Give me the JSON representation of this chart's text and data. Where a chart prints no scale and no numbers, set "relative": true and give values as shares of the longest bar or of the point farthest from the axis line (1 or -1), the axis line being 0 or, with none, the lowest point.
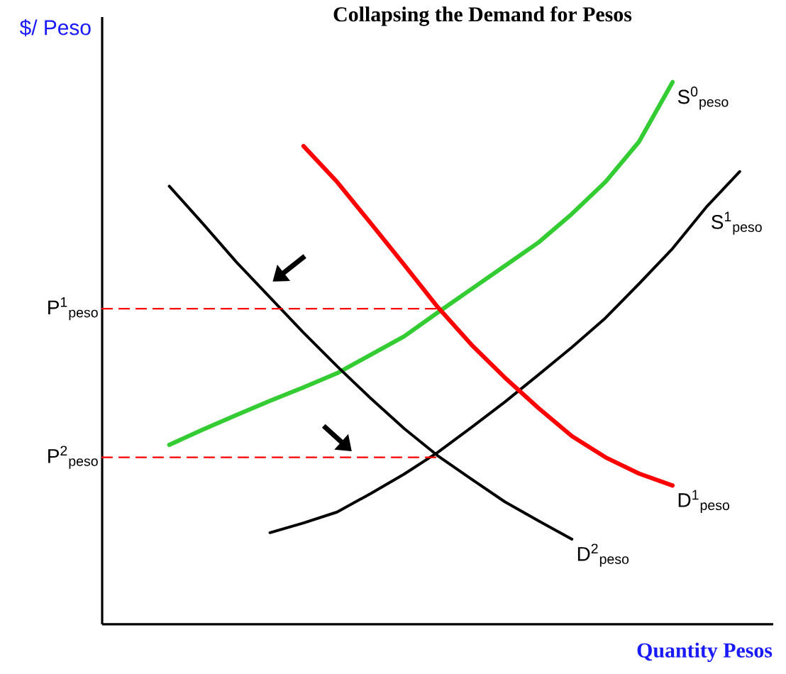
{
  "chart_data": {
    "type": "line",
    "relative": true,
    "title": "Collapsing the Demand for Pesos",
    "xlabel": "Quantity Pesos",
    "ylabel": "$/ Peso",
    "marker": "none",
    "categories": [
      null,
      null,
      null,
      null,
      null,
      null,
      null,
      null,
      null,
      null,
      null,
      null,
      null,
      null,
      null,
      null,
      null,
      null,
      null,
      null,
      null
    ],
    "series": [
      {
        "name": "S$^{0}$$_{peso}$",
        "color": "#33cc33",
        "values": [
          null,
          null,
          0.331,
          0.359,
          0.386,
          0.412,
          0.437,
          0.463,
          0.497,
          0.531,
          0.575,
          0.618,
          0.661,
          0.704,
          0.757,
          0.816,
          0.89,
          1.0,
          null,
          null,
          null
        ]
      },
      {
        "name": "S$^{1}$$_{peso}$",
        "color": "#000000",
        "values": [
          null,
          null,
          null,
          null,
          null,
          0.169,
          0.187,
          0.207,
          0.241,
          0.277,
          0.317,
          0.363,
          0.41,
          0.46,
          0.511,
          0.565,
          0.628,
          0.693,
          0.769,
          0.835,
          null
        ]
      },
      {
        "name": "D$^{1}$$_{peso}$",
        "color": "#ff0000",
        "values": [
          null,
          null,
          null,
          null,
          null,
          null,
          0.882,
          0.816,
          0.74,
          0.663,
          0.585,
          0.516,
          0.455,
          0.399,
          0.347,
          0.308,
          0.278,
          0.256,
          null,
          null,
          null
        ]
      },
      {
        "name": "D$^{2}$$_{peso}$",
        "color": "#000000",
        "values": [
          null,
          null,
          0.808,
          0.739,
          0.668,
          0.603,
          0.538,
          0.476,
          0.417,
          0.361,
          0.311,
          0.268,
          0.226,
          0.191,
          0.157,
          null,
          null,
          null,
          null,
          null,
          null
        ]
      },
      {
        "name": "P$^{1}$$_{peso}$",
        "color": "#ff0000",
        "line_style": "dashed",
        "values": [
          0.582,
          0.582,
          0.582,
          0.582,
          0.582,
          0.582,
          0.582,
          0.582,
          0.582,
          0.582,
          0.582,
          null,
          null,
          null,
          null,
          null,
          null,
          null,
          null,
          null,
          null
        ]
      },
      {
        "name": "P$^{2}$$_{peso}$",
        "color": "#ff0000",
        "line_style": "dashed",
        "values": [
          0.308,
          0.308,
          0.308,
          0.308,
          0.308,
          0.308,
          0.308,
          0.308,
          0.308,
          0.308,
          0.308,
          null,
          null,
          null,
          null,
          null,
          null,
          null,
          null,
          null,
          null
        ]
      }
    ]
  }
}
